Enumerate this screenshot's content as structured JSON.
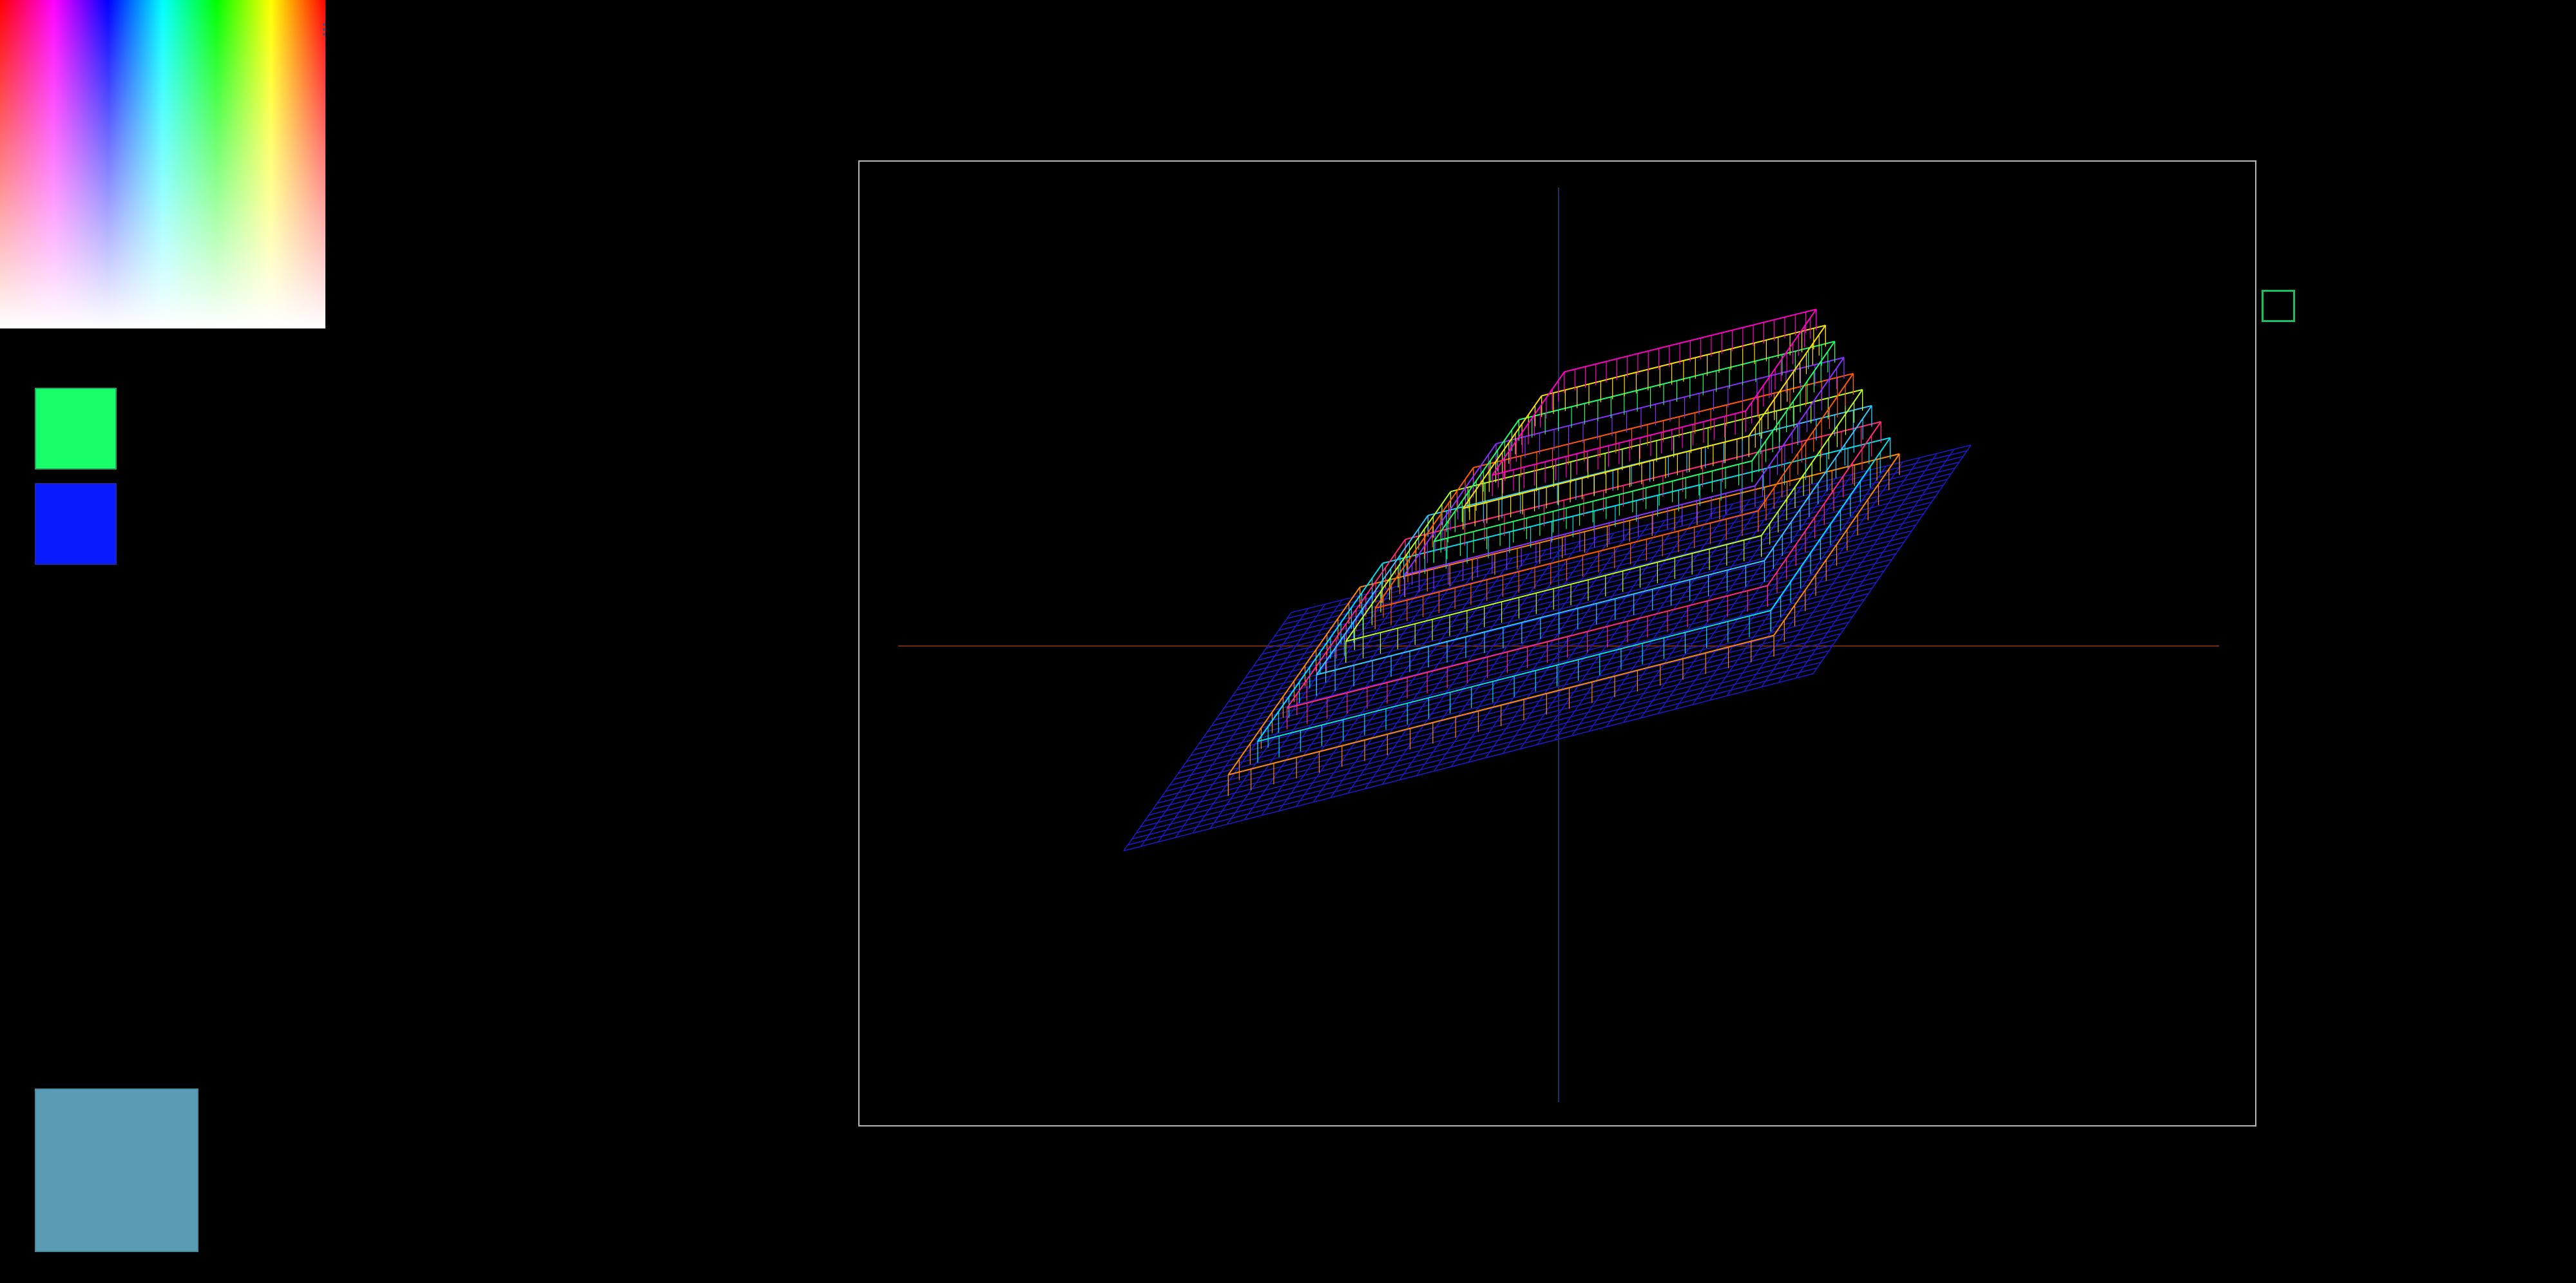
{
  "palette": {
    "hue_stops": [
      "#ff0000",
      "#ff00ff",
      "#0000ff",
      "#00ffff",
      "#00ff00",
      "#ffff00",
      "#ff0000"
    ],
    "primary_color": "#19ff6a",
    "secondary_color": "#0a1aff",
    "mixed_color": "#5a9cb4"
  },
  "viewport": {
    "frame_color": "#b8b8b8",
    "axis_x_color": "#6a2a10",
    "axis_y_color": "#20305a",
    "base_grid_color": "#1a1ad0",
    "layer_colors": [
      "#ff8a00",
      "#00e0f0",
      "#ff2a7a",
      "#30c8ff",
      "#b8ff20",
      "#ff5a00",
      "#8a30ff",
      "#20ff6a",
      "#ffe000",
      "#ff00c8"
    ]
  },
  "toggle": {
    "color": "#18c060"
  }
}
